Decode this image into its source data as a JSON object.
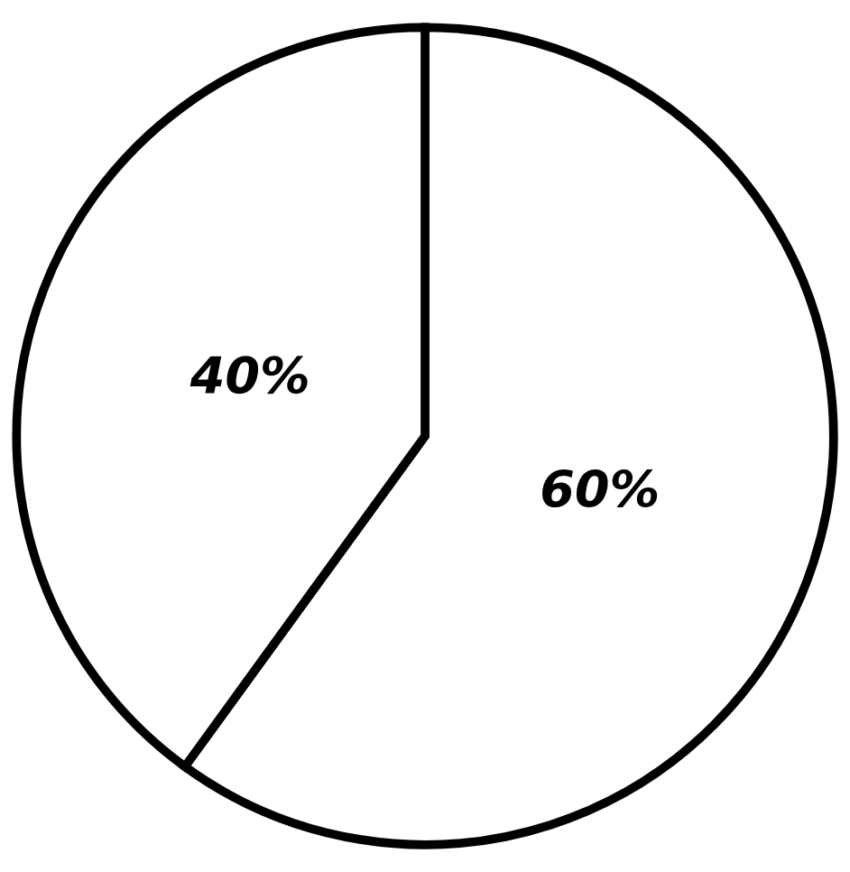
{
  "chart_data": {
    "type": "pie",
    "categories": [
      null,
      null
    ],
    "values": [
      60,
      40
    ],
    "colors": [
      "#ffffff",
      "#ffffff"
    ],
    "value_labels": [
      "60%",
      "40%"
    ]
  }
}
